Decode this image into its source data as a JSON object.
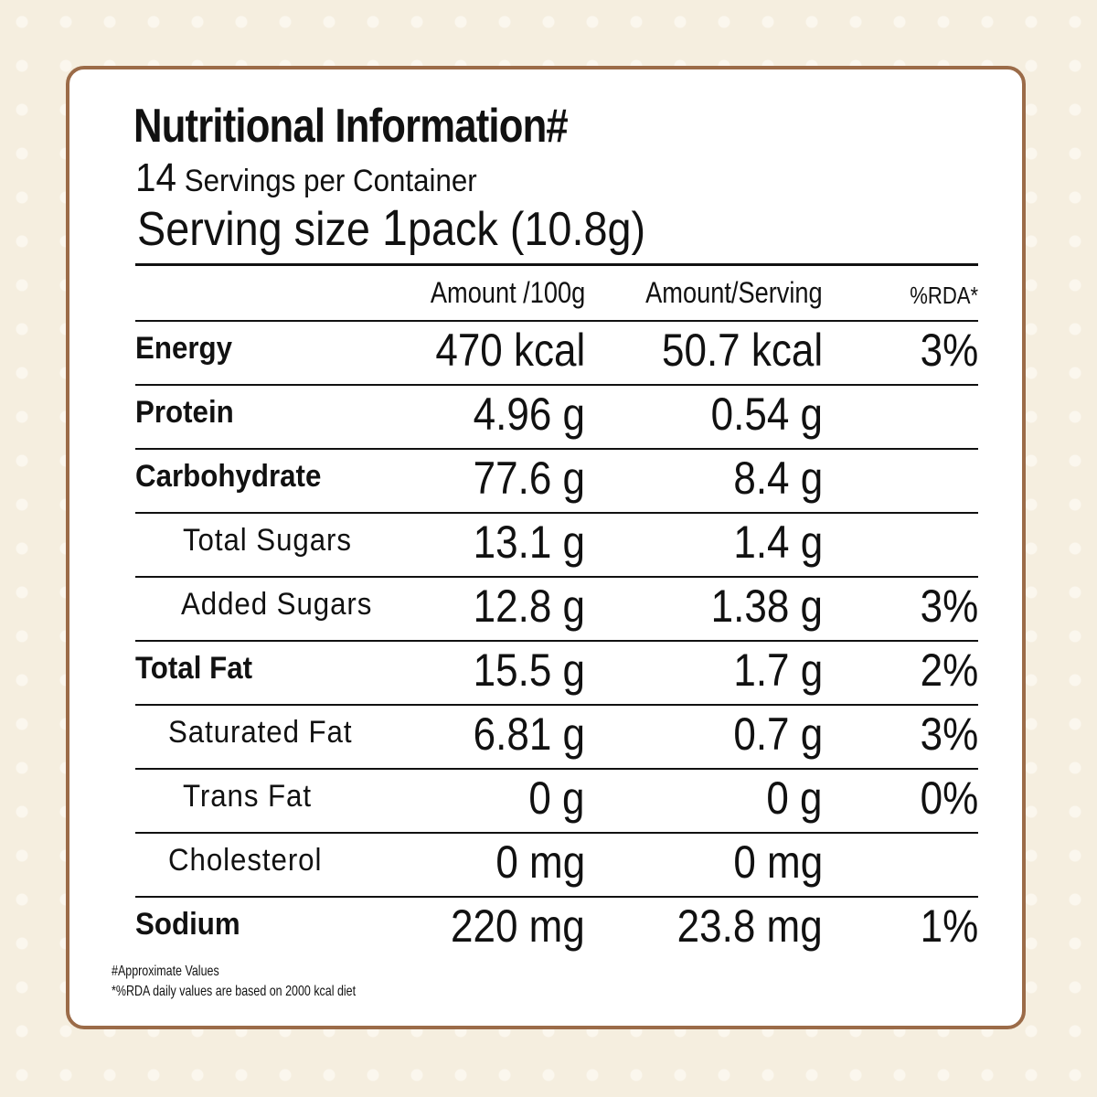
{
  "title": "Nutritional Information#",
  "servings_count": "14",
  "servings_text": "Servings per Container",
  "serving_size_label": "Serving size",
  "serving_size_qty": "1",
  "serving_size_unit": "pack (10.8g)",
  "headers": {
    "per100": "Amount /100g",
    "perServing": "Amount/Serving",
    "rda": "%RDA*"
  },
  "rows": [
    {
      "label": "Energy",
      "per100": "470 kcal",
      "perServing": "50.7 kcal",
      "rda": "3%"
    },
    {
      "label": "Protein",
      "per100": "4.96 g",
      "perServing": "0.54 g",
      "rda": ""
    },
    {
      "label": "Carbohydrate",
      "per100": "77.6 g",
      "perServing": "8.4 g",
      "rda": ""
    },
    {
      "label": "Total Sugars",
      "per100": "13.1 g",
      "perServing": "1.4 g",
      "rda": ""
    },
    {
      "label": "Added Sugars",
      "per100": "12.8 g",
      "perServing": "1.38 g",
      "rda": "3%"
    },
    {
      "label": "Total Fat",
      "per100": "15.5 g",
      "perServing": "1.7 g",
      "rda": "2%"
    },
    {
      "label": "Saturated Fat",
      "per100": "6.81 g",
      "perServing": "0.7 g",
      "rda": "3%"
    },
    {
      "label": "Trans Fat",
      "per100": "0 g",
      "perServing": "0 g",
      "rda": "0%"
    },
    {
      "label": "Cholesterol",
      "per100": "0 mg",
      "perServing": "0 mg",
      "rda": ""
    },
    {
      "label": "Sodium",
      "per100": "220 mg",
      "perServing": "23.8 mg",
      "rda": "1%"
    }
  ],
  "footnotes": [
    "#Approximate Values",
    "*%RDA daily values are based on 2000 kcal diet"
  ],
  "colors": {
    "border": "#9b6b48",
    "background": "#f5eedf"
  }
}
